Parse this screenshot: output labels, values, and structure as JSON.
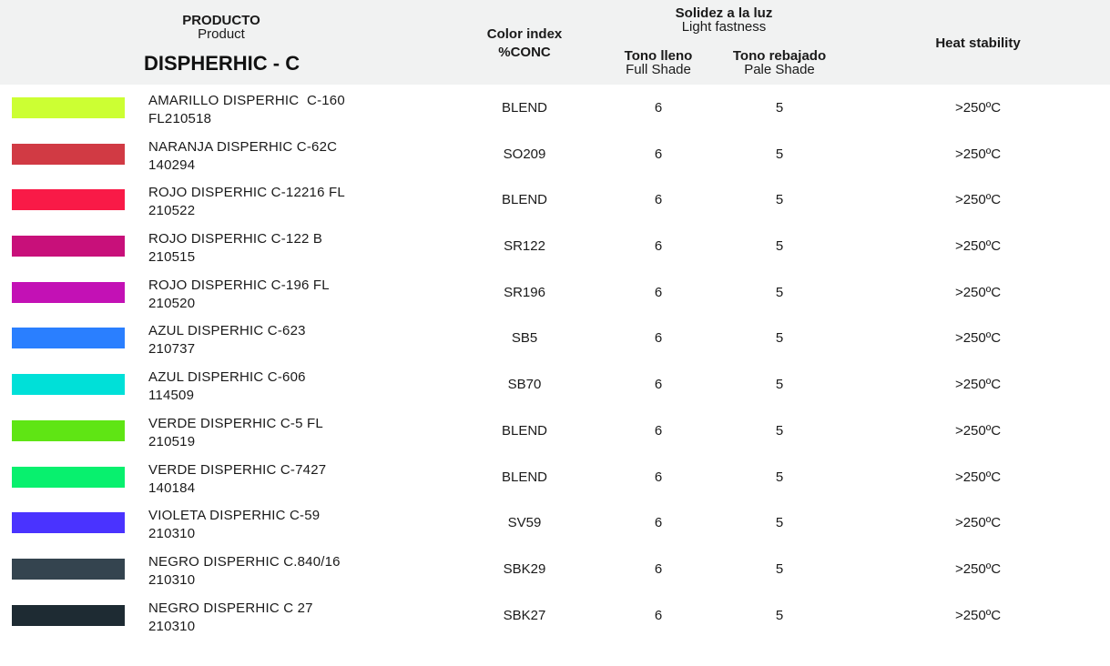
{
  "header": {
    "producto": "PRODUCTO",
    "product": "Product",
    "title": "DISPHERHIC - C",
    "color_index": "Color index",
    "conc": "%CONC",
    "solidez": "Solidez a la luz",
    "light_fastness": "Light fastness",
    "tono_lleno": "Tono lleno",
    "full_shade": "Full Shade",
    "tono_rebajado": "Tono rebajado",
    "pale_shade": "Pale Shade",
    "heat_stability": "Heat stability"
  },
  "rows": [
    {
      "color": "#ccff33",
      "name": "AMARILLO DISPERHIC  C-160",
      "code": "FL210518",
      "index": "BLEND",
      "full": "6",
      "pale": "5",
      "heat": ">250ºC"
    },
    {
      "color": "#d13a44",
      "name": "NARANJA DISPERHIC C-62C",
      "code": "140294",
      "index": "SO209",
      "full": "6",
      "pale": "5",
      "heat": ">250ºC"
    },
    {
      "color": "#f91a47",
      "name": "ROJO DISPERHIC C-12216 FL",
      "code": "210522",
      "index": "BLEND",
      "full": "6",
      "pale": "5",
      "heat": ">250ºC"
    },
    {
      "color": "#c8107a",
      "name": "ROJO DISPERHIC C-122 B",
      "code": "210515",
      "index": "SR122",
      "full": "6",
      "pale": "5",
      "heat": ">250ºC"
    },
    {
      "color": "#c311b5",
      "name": "ROJO DISPERHIC C-196 FL",
      "code": "210520",
      "index": "SR196",
      "full": "6",
      "pale": "5",
      "heat": ">250ºC"
    },
    {
      "color": "#2a7fff",
      "name": "AZUL DISPERHIC C-623",
      "code": "210737",
      "index": "SB5",
      "full": "6",
      "pale": "5",
      "heat": ">250ºC"
    },
    {
      "color": "#00e0d8",
      "name": "AZUL DISPERHIC C-606",
      "code": "114509",
      "index": "SB70",
      "full": "6",
      "pale": "5",
      "heat": ">250ºC"
    },
    {
      "color": "#5fe514",
      "name": "VERDE DISPERHIC C-5 FL",
      "code": "210519",
      "index": "BLEND",
      "full": "6",
      "pale": "5",
      "heat": ">250ºC"
    },
    {
      "color": "#08f06e",
      "name": "VERDE DISPERHIC C-7427",
      "code": "140184",
      "index": "BLEND",
      "full": "6",
      "pale": "5",
      "heat": ">250ºC"
    },
    {
      "color": "#4a33ff",
      "name": "VIOLETA DISPERHIC C-59",
      "code": "210310",
      "index": "SV59",
      "full": "6",
      "pale": "5",
      "heat": ">250ºC"
    },
    {
      "color": "#34444f",
      "name": "NEGRO DISPERHIC C.840/16",
      "code": "210310",
      "index": "SBK29",
      "full": "6",
      "pale": "5",
      "heat": ">250ºC"
    },
    {
      "color": "#1e2b33",
      "name": "NEGRO DISPERHIC C 27",
      "code": "210310",
      "index": "SBK27",
      "full": "6",
      "pale": "5",
      "heat": ">250ºC"
    }
  ]
}
